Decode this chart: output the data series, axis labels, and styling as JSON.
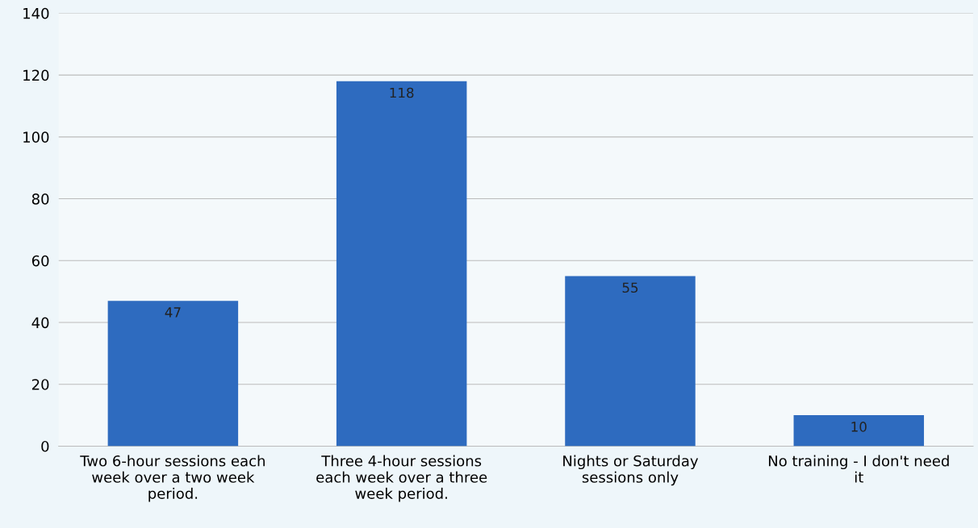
{
  "chart_data": {
    "type": "bar",
    "categories": [
      "Two 6-hour sessions each\nweek over a two week\nperiod.",
      "Three 4-hour sessions\neach week over a three\nweek period.",
      "Nights or Saturday\nsessions only",
      "No training - I don't need\nit"
    ],
    "values": [
      47,
      118,
      55,
      10
    ],
    "color": "#2e6bbf",
    "ylim": [
      0,
      140
    ],
    "yticks": [
      0,
      20,
      40,
      60,
      80,
      100,
      120,
      140
    ],
    "grid": "y",
    "data_labels": true
  }
}
